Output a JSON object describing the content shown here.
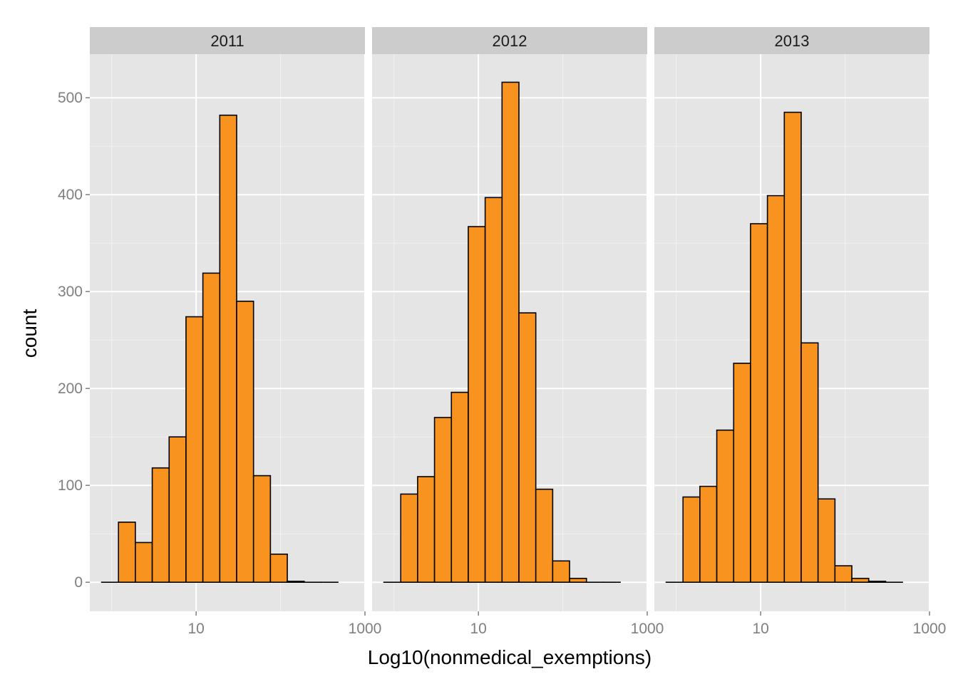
{
  "chart_data": {
    "type": "bar",
    "chart_kind": "faceted histogram",
    "xlabel": "Log10(nonmedical_exemptions)",
    "ylabel": "count",
    "x_scale": "log10",
    "x_tick_labels": [
      "10",
      "1000"
    ],
    "x_major_ticks": [
      10,
      1000
    ],
    "x_minor_ticks": [
      1,
      100
    ],
    "xlim": [
      0.55,
      1000
    ],
    "y_ticks": [
      0,
      100,
      200,
      300,
      400,
      500
    ],
    "ylim": [
      -30,
      545
    ],
    "grid": true,
    "bar_fill": "#f7931e",
    "bar_stroke": "#000000",
    "panel_background": "#e5e5e5",
    "strip_background": "#cccccc",
    "bin_width_log10": 0.2,
    "bin_start_log10": -0.12,
    "facets": [
      {
        "label": "2011",
        "counts": [
          0,
          62,
          41,
          118,
          150,
          274,
          319,
          482,
          290,
          110,
          29,
          1,
          0,
          0
        ]
      },
      {
        "label": "2012",
        "counts": [
          0,
          91,
          109,
          170,
          196,
          367,
          397,
          516,
          278,
          96,
          22,
          4,
          0,
          0
        ]
      },
      {
        "label": "2013",
        "counts": [
          0,
          88,
          99,
          157,
          226,
          370,
          399,
          485,
          247,
          86,
          17,
          4,
          1,
          0
        ]
      }
    ]
  }
}
